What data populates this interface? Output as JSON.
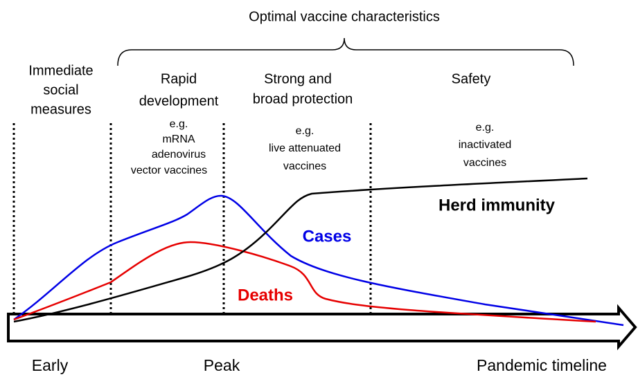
{
  "title": "Optimal vaccine characteristics",
  "phases": [
    {
      "name": [
        "Immediate",
        "social",
        "measures"
      ]
    },
    {
      "name": [
        "Rapid",
        "development"
      ],
      "examples": [
        "e.g.",
        "mRNA",
        "adenovirus",
        "vector vaccines"
      ]
    },
    {
      "name": [
        "Strong and",
        "broad protection"
      ],
      "examples": [
        "e.g.",
        "live attenuated",
        "vaccines"
      ]
    },
    {
      "name": [
        "Safety"
      ],
      "examples": [
        "e.g.",
        "inactivated",
        "vaccines"
      ]
    }
  ],
  "curves": {
    "cases": "Cases",
    "deaths": "Deaths",
    "herd": "Herd immunity"
  },
  "timeline": {
    "start": "Early",
    "middle": "Peak",
    "end": "Pandemic timeline"
  }
}
